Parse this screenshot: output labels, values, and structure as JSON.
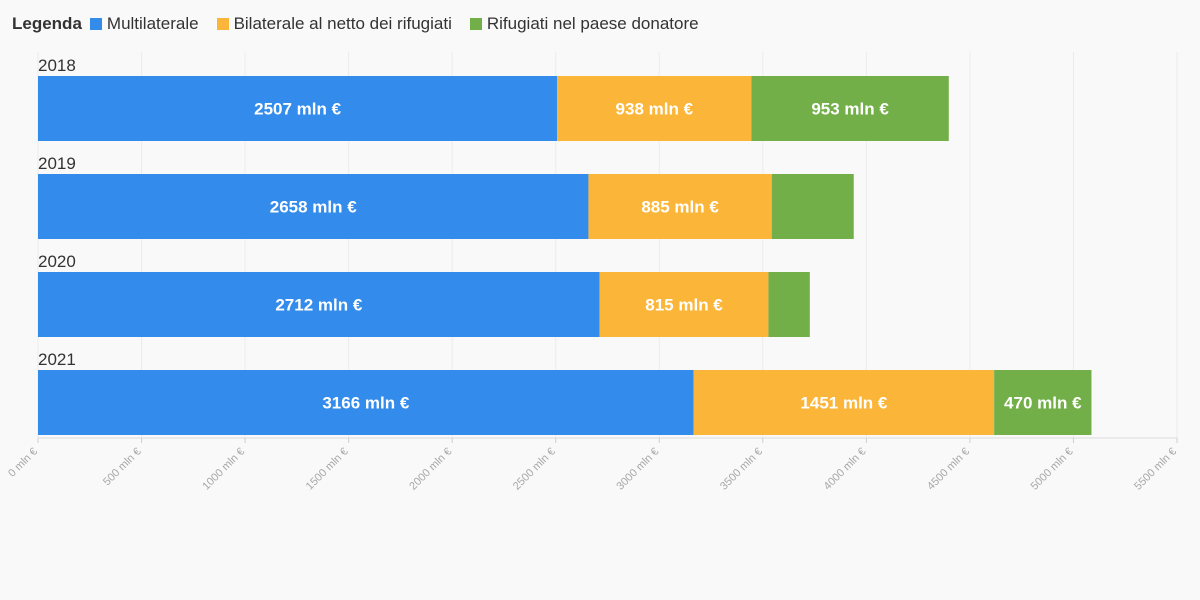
{
  "legend": {
    "title": "Legenda",
    "items": [
      {
        "label": "Multilaterale",
        "color": "#338beb"
      },
      {
        "label": "Bilaterale al netto dei rifugiati",
        "color": "#fbb63a"
      },
      {
        "label": "Rifugiati nel paese donatore",
        "color": "#73af49"
      }
    ]
  },
  "chart_data": {
    "type": "bar",
    "orientation": "horizontal",
    "stacked": true,
    "categories": [
      "2018",
      "2019",
      "2020",
      "2021"
    ],
    "series": [
      {
        "name": "Multilaterale",
        "color": "#338beb",
        "values": [
          2507,
          2658,
          2712,
          3166
        ]
      },
      {
        "name": "Bilaterale al netto dei rifugiati",
        "color": "#fbb63a",
        "values": [
          938,
          885,
          815,
          1451
        ]
      },
      {
        "name": "Rifugiati nel paese donatore",
        "color": "#73af49",
        "values": [
          953,
          396,
          200,
          470
        ]
      }
    ],
    "data_labels": [
      [
        "2507 mln €",
        "938 mln €",
        "953 mln €"
      ],
      [
        "2658 mln €",
        "885 mln €",
        ""
      ],
      [
        "2712 mln €",
        "815 mln €",
        ""
      ],
      [
        "3166 mln €",
        "1451 mln €",
        "470 mln €"
      ]
    ],
    "x_ticks": [
      0,
      500,
      1000,
      1500,
      2000,
      2500,
      3000,
      3500,
      4000,
      4500,
      5000,
      5500
    ],
    "x_tick_labels": [
      "0 mln €",
      "500 mln €",
      "1000 mln €",
      "1500 mln €",
      "2000 mln €",
      "2500 mln €",
      "3000 mln €",
      "3500 mln €",
      "4000 mln €",
      "4500 mln €",
      "5000 mln €",
      "5500 mln €"
    ],
    "xlim": [
      0,
      5500
    ],
    "grid": true,
    "legend_position": "top-left"
  }
}
